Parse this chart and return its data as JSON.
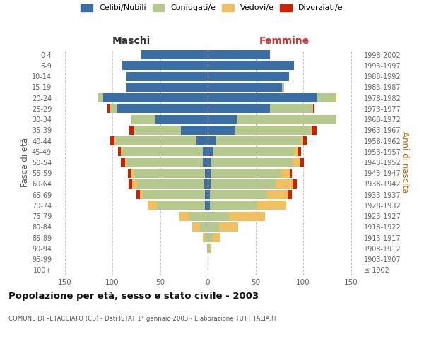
{
  "age_groups": [
    "100+",
    "95-99",
    "90-94",
    "85-89",
    "80-84",
    "75-79",
    "70-74",
    "65-69",
    "60-64",
    "55-59",
    "50-54",
    "45-49",
    "40-44",
    "35-39",
    "30-34",
    "25-29",
    "20-24",
    "15-19",
    "10-14",
    "5-9",
    "0-4"
  ],
  "birth_years": [
    "≤ 1902",
    "1903-1907",
    "1908-1912",
    "1913-1917",
    "1918-1922",
    "1923-1927",
    "1928-1932",
    "1933-1937",
    "1938-1942",
    "1943-1947",
    "1948-1952",
    "1953-1957",
    "1958-1962",
    "1963-1967",
    "1968-1972",
    "1973-1977",
    "1978-1982",
    "1983-1987",
    "1988-1992",
    "1993-1997",
    "1998-2002"
  ],
  "colors": {
    "celibe": "#3a6ea5",
    "coniugato": "#b5c98e",
    "vedovo": "#f0c060",
    "divorziato": "#cc2200"
  },
  "maschi": {
    "celibe": [
      0,
      0,
      0,
      0,
      0,
      0,
      3,
      3,
      4,
      3,
      5,
      5,
      12,
      28,
      55,
      95,
      110,
      85,
      85,
      90,
      70
    ],
    "coniugato": [
      0,
      0,
      1,
      3,
      8,
      20,
      50,
      65,
      70,
      75,
      80,
      85,
      85,
      50,
      25,
      8,
      5,
      0,
      0,
      0,
      0
    ],
    "vedovo": [
      0,
      0,
      0,
      2,
      8,
      10,
      10,
      3,
      5,
      3,
      2,
      1,
      1,
      0,
      0,
      0,
      0,
      0,
      0,
      0,
      0
    ],
    "divorziato": [
      0,
      0,
      0,
      0,
      0,
      0,
      0,
      4,
      4,
      3,
      4,
      3,
      4,
      4,
      0,
      2,
      0,
      0,
      0,
      0,
      0
    ]
  },
  "femmine": {
    "nubile": [
      0,
      0,
      0,
      0,
      0,
      0,
      2,
      2,
      3,
      3,
      4,
      5,
      8,
      28,
      30,
      65,
      115,
      78,
      85,
      90,
      65
    ],
    "coniugata": [
      0,
      1,
      2,
      5,
      12,
      22,
      50,
      60,
      68,
      73,
      85,
      85,
      90,
      80,
      105,
      45,
      18,
      2,
      0,
      0,
      0
    ],
    "vedova": [
      0,
      0,
      2,
      8,
      20,
      38,
      30,
      22,
      18,
      10,
      8,
      5,
      2,
      1,
      0,
      0,
      2,
      0,
      0,
      0,
      0
    ],
    "divorziata": [
      0,
      0,
      0,
      0,
      0,
      0,
      0,
      4,
      4,
      2,
      4,
      3,
      4,
      5,
      0,
      2,
      0,
      0,
      0,
      0,
      0
    ]
  },
  "xlim": 160,
  "title": "Popolazione per età, sesso e stato civile - 2003",
  "subtitle": "COMUNE DI PETACCIATO (CB) - Dati ISTAT 1° gennaio 2003 - Elaborazione TUTTITALIA.IT",
  "ylabel_left": "Fasce di età",
  "ylabel_right": "Anni di nascita",
  "maschi_label": "Maschi",
  "femmine_label": "Femmine",
  "legend_labels": [
    "Celibi/Nubili",
    "Coniugati/e",
    "Vedovi/e",
    "Divorziati/e"
  ],
  "bg_color": "#f5f5f5"
}
